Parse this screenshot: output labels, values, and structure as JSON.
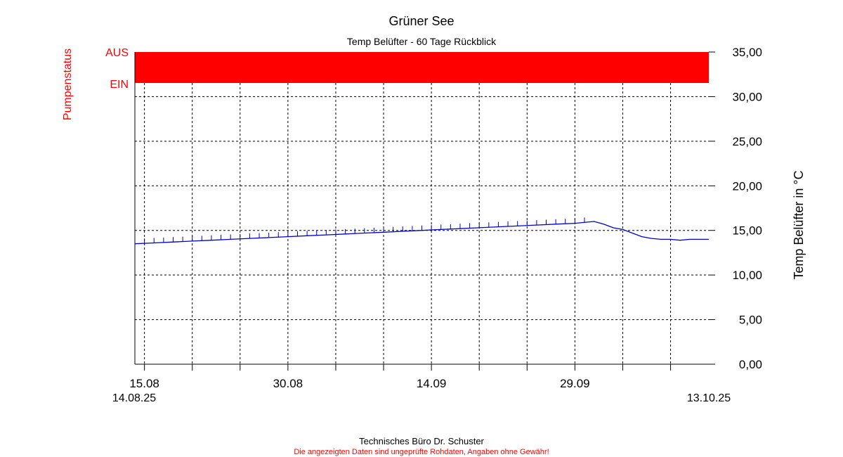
{
  "chart_data": {
    "type": "line",
    "title": "Grüner See",
    "subtitle": "Temp Belüfter - 60 Tage Rückblick",
    "ylabel": "Temp Belüfter in °C",
    "status_label": "Pumpenstatus",
    "status_states": [
      "AUS",
      "EIN"
    ],
    "pump_status_color": "#ff0000",
    "line_color": "#0000cc",
    "grid": true,
    "x_start": "14.08.25",
    "x_end": "13.10.25",
    "x_ticks": [
      "15.08",
      "30.08",
      "14.09",
      "29.09"
    ],
    "ylim": [
      0,
      35
    ],
    "yticks": [
      "0,00",
      "5,00",
      "10,00",
      "15,00",
      "20,00",
      "25,00",
      "30,00",
      "35,00"
    ],
    "series": [
      {
        "x": [
          0,
          2,
          4,
          6,
          8,
          10,
          12,
          14,
          16,
          18,
          20,
          22,
          24,
          26,
          28,
          30,
          32,
          34,
          36,
          38,
          40,
          42,
          44,
          46,
          48,
          49,
          50,
          51,
          52,
          53,
          54,
          55,
          56,
          57,
          58,
          59,
          60
        ],
        "y": [
          13.5,
          13.6,
          13.7,
          13.8,
          13.9,
          14.0,
          14.1,
          14.2,
          14.3,
          14.4,
          14.5,
          14.6,
          14.7,
          14.8,
          14.9,
          15.0,
          15.1,
          15.2,
          15.3,
          15.4,
          15.5,
          15.6,
          15.7,
          15.8,
          16.0,
          15.7,
          15.3,
          15.1,
          14.7,
          14.3,
          14.1,
          14.0,
          14.0,
          13.9,
          14.0,
          14.0,
          14.0
        ]
      }
    ]
  },
  "footer": {
    "company": "Technisches Büro Dr. Schuster",
    "disclaimer": "Die angezeigten Daten sind ungeprüfte Rohdaten, Angaben ohne Gewähr!"
  }
}
